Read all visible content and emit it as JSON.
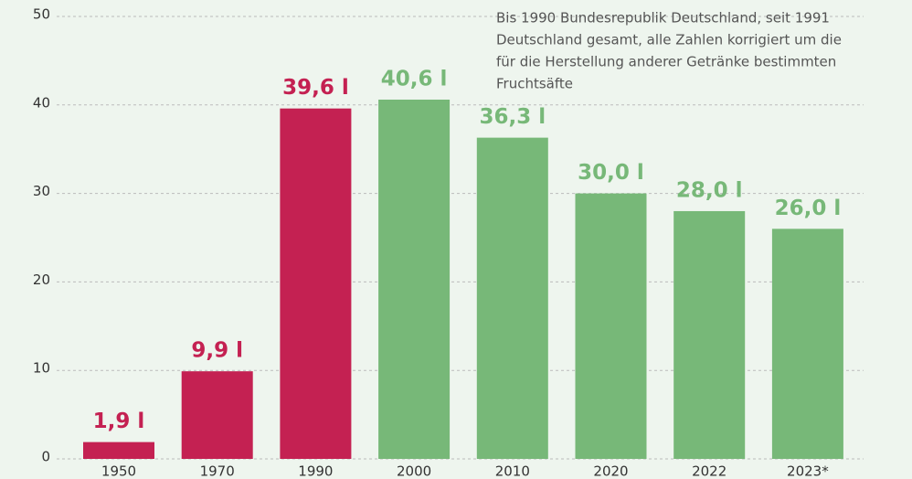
{
  "chart_data": {
    "type": "bar",
    "categories": [
      "1950",
      "1970",
      "1990",
      "2000",
      "2010",
      "2020",
      "2022",
      "2023*"
    ],
    "values": [
      1.9,
      9.9,
      39.6,
      40.6,
      36.3,
      30.0,
      28.0,
      26.0
    ],
    "value_labels": [
      "1,9 l",
      "9,9 l",
      "39,6 l",
      "40,6 l",
      "36,3 l",
      "30,0 l",
      "28,0 l",
      "26,0 l"
    ],
    "colors": [
      "#c42152",
      "#c42152",
      "#c42152",
      "#77b878",
      "#77b878",
      "#77b878",
      "#77b878",
      "#77b878"
    ],
    "ylim": [
      0,
      50
    ],
    "yticks": [
      0,
      10,
      20,
      30,
      40,
      50
    ],
    "grid": true,
    "annotation": [
      "Bis 1990 Bundesrepublik Deutschland, seit 1991",
      "Deutschland gesamt, alle Zahlen korrigiert um die",
      "für die Herstellung anderer Getränke bestimmten",
      "Fruchtsäfte"
    ]
  }
}
